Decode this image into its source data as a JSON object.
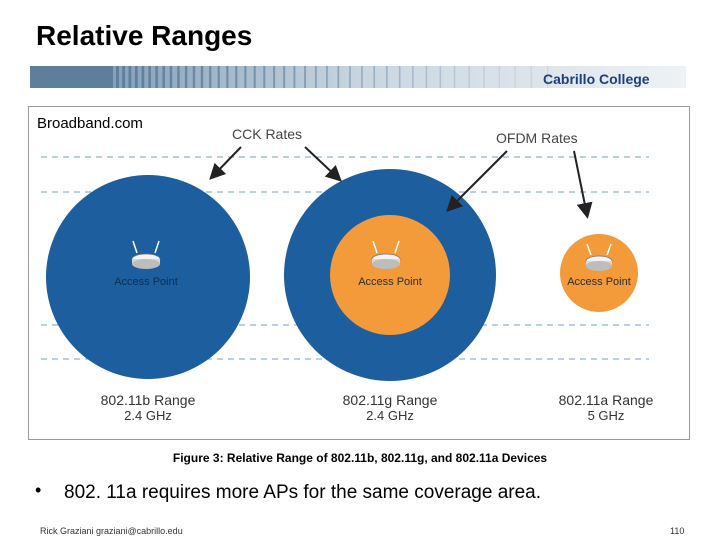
{
  "slide": {
    "title": "Relative Ranges",
    "brand": "Cabrillo College",
    "bullet": "802. 11a requires more APs for the same coverage area.",
    "footer_left": "Rick Graziani graziani@cabrillo.edu",
    "page_number": "110"
  },
  "figure": {
    "credit": "Broadband.com",
    "caption": "Figure 3:  Relative Range of 802.11b, 802.11g, and 802.11a Devices",
    "callouts": {
      "cck": "CCK Rates",
      "ofdm": "OFDM Rates"
    },
    "access_point_label": "Access Point",
    "ranges": [
      {
        "name": "802.11b Range",
        "band": "2.4 GHz"
      },
      {
        "name": "802.11g Range",
        "band": "2.4 GHz"
      },
      {
        "name": "802.11a Range",
        "band": "5 GHz"
      }
    ],
    "colors": {
      "cck": "#1c5e9e",
      "ofdm": "#f39a3a",
      "router": "#ffffff"
    }
  }
}
